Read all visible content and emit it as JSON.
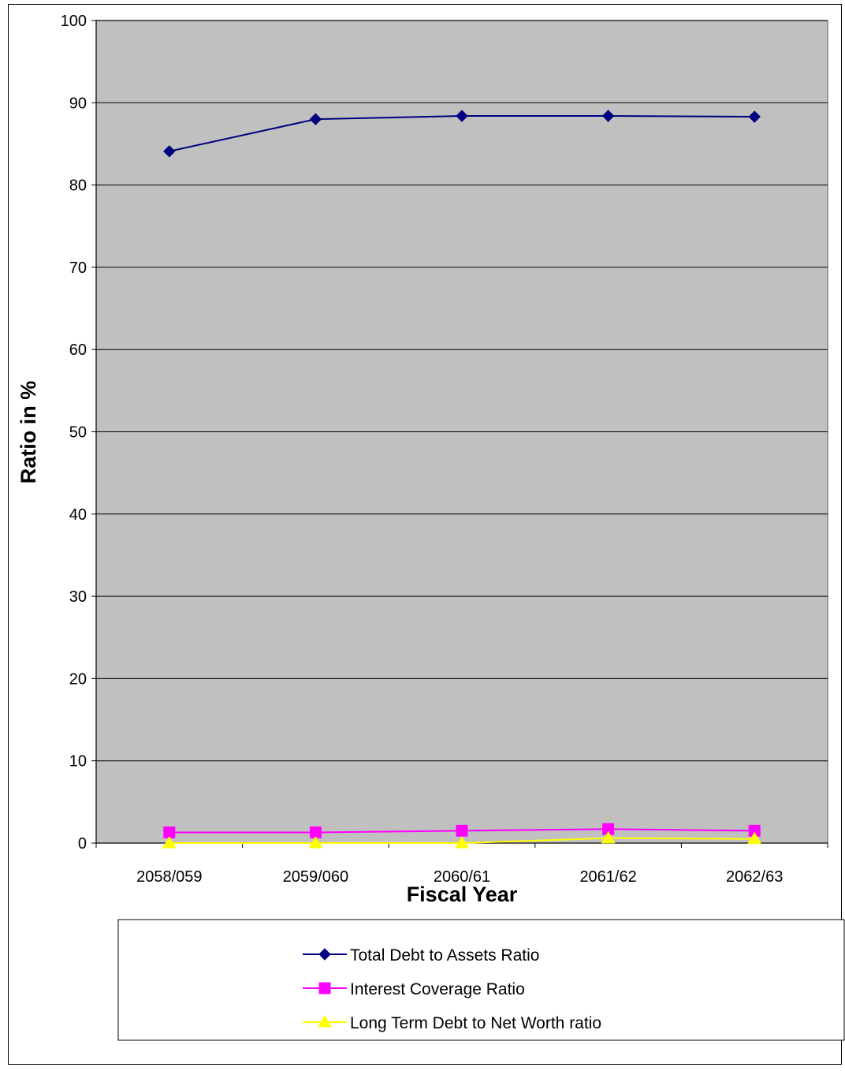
{
  "chart_data": {
    "type": "line",
    "xlabel": "Fiscal Year",
    "ylabel": "Ratio in %",
    "ylim": [
      0,
      100
    ],
    "yticks": [
      "0",
      "10",
      "20",
      "30",
      "40",
      "50",
      "60",
      "70",
      "80",
      "90",
      "100"
    ],
    "categories": [
      "2058/059",
      "2059/060",
      "2060/61",
      "2061/62",
      "2062/63"
    ],
    "grid": true,
    "plot_background": "#c0c0c0",
    "legend_position": "bottom",
    "series": [
      {
        "name": "Total Debt to Assets Ratio",
        "color": "#000080",
        "marker": "diamond",
        "values": [
          84.1,
          88.0,
          88.4,
          88.4,
          88.3
        ]
      },
      {
        "name": "Interest Coverage Ratio",
        "color": "#ff00ff",
        "marker": "square",
        "values": [
          1.3,
          1.3,
          1.5,
          1.7,
          1.5
        ]
      },
      {
        "name": "Long Term Debt to Net Worth ratio",
        "color": "#ffff00",
        "marker": "triangle",
        "values": [
          0.0,
          0.0,
          0.0,
          0.6,
          0.5
        ]
      }
    ]
  }
}
